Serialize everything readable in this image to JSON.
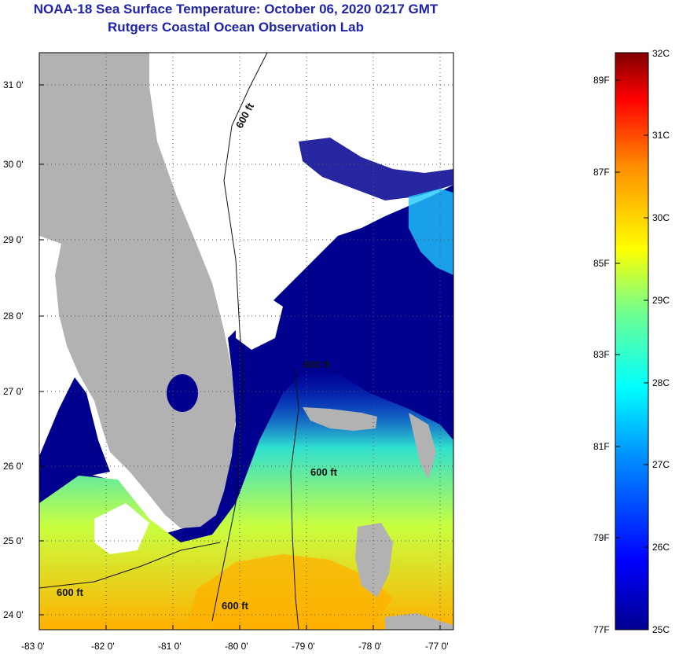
{
  "title": "NOAA-18 Sea Surface Temperature:  October 06, 2020 0217 GMT",
  "subtitle": "Rutgers Coastal Ocean Observation Lab",
  "map": {
    "lon_ticks": [
      "-83 0'",
      "-82 0'",
      "-81 0'",
      "-80 0'",
      "-79 0'",
      "-78 0'",
      "-77 0'"
    ],
    "lat_ticks": [
      "31 0'",
      "30 0'",
      "29 0'",
      "28 0'",
      "27 0'",
      "26 0'",
      "25 0'",
      "24 0'"
    ],
    "lon_range": [
      -83,
      -76.8
    ],
    "lat_range": [
      23.8,
      31.45
    ],
    "isobath_labels": [
      "600 ft",
      "600 ft",
      "600 ft",
      "600 ft",
      "600 ft"
    ],
    "colors": {
      "land": "#b2b2b2",
      "cloud": "#ffffff",
      "cold": "#00008f",
      "warm": "#ffb000"
    }
  },
  "colorbar": {
    "celsius_labels": [
      "32C",
      "31C",
      "30C",
      "29C",
      "28C",
      "27C",
      "26C",
      "25C"
    ],
    "fahrenheit_labels": [
      "89F",
      "87F",
      "85F",
      "83F",
      "81F",
      "79F",
      "77F"
    ],
    "range_c": [
      25,
      32
    ]
  }
}
